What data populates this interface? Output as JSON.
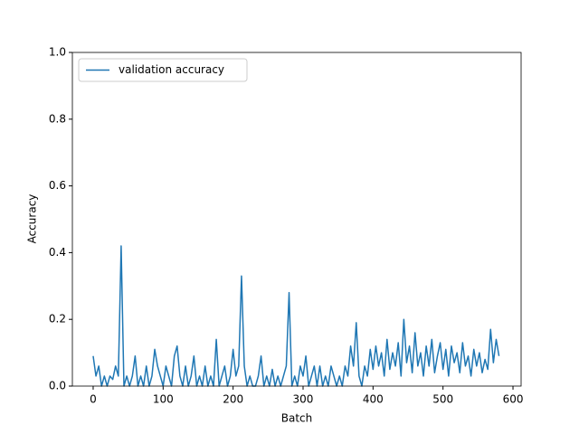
{
  "chart_data": {
    "type": "line",
    "x_label": "Batch",
    "y_label": "Accuracy",
    "x": [
      0,
      4,
      8,
      12,
      16,
      20,
      24,
      28,
      32,
      36,
      40,
      44,
      48,
      52,
      56,
      60,
      64,
      68,
      72,
      76,
      80,
      84,
      88,
      92,
      96,
      100,
      104,
      108,
      112,
      116,
      120,
      124,
      128,
      132,
      136,
      140,
      144,
      148,
      152,
      156,
      160,
      164,
      168,
      172,
      176,
      180,
      184,
      188,
      192,
      196,
      200,
      204,
      208,
      212,
      216,
      220,
      224,
      228,
      232,
      236,
      240,
      244,
      248,
      252,
      256,
      260,
      264,
      268,
      272,
      276,
      280,
      284,
      288,
      292,
      296,
      300,
      304,
      308,
      312,
      316,
      320,
      324,
      328,
      332,
      336,
      340,
      344,
      348,
      352,
      356,
      360,
      364,
      368,
      372,
      376,
      380,
      384,
      388,
      392,
      396,
      400,
      404,
      408,
      412,
      416,
      420,
      424,
      428,
      432,
      436,
      440,
      444,
      448,
      452,
      456,
      460,
      464,
      468,
      472,
      476,
      480,
      484,
      488,
      492,
      496,
      500,
      504,
      508,
      512,
      516,
      520,
      524,
      528,
      532,
      536,
      540,
      544,
      548,
      552,
      556,
      560,
      564,
      568,
      572,
      576,
      580
    ],
    "series": [
      {
        "name": "validation accuracy",
        "color": "#1f77b4",
        "values": [
          0.09,
          0.03,
          0.06,
          0.0,
          0.03,
          0.0,
          0.03,
          0.02,
          0.06,
          0.03,
          0.42,
          0.0,
          0.03,
          0.0,
          0.03,
          0.09,
          0.0,
          0.03,
          0.0,
          0.06,
          0.0,
          0.03,
          0.11,
          0.06,
          0.03,
          0.0,
          0.06,
          0.03,
          0.0,
          0.09,
          0.12,
          0.03,
          0.0,
          0.06,
          0.0,
          0.03,
          0.09,
          0.0,
          0.03,
          0.0,
          0.06,
          0.0,
          0.03,
          0.0,
          0.14,
          0.0,
          0.03,
          0.06,
          0.0,
          0.03,
          0.11,
          0.03,
          0.06,
          0.33,
          0.06,
          0.0,
          0.03,
          0.0,
          0.0,
          0.03,
          0.09,
          0.0,
          0.03,
          0.0,
          0.05,
          0.0,
          0.03,
          0.0,
          0.03,
          0.06,
          0.28,
          0.0,
          0.03,
          0.0,
          0.06,
          0.03,
          0.09,
          0.0,
          0.03,
          0.06,
          0.0,
          0.06,
          0.0,
          0.03,
          0.0,
          0.06,
          0.03,
          0.0,
          0.03,
          0.0,
          0.06,
          0.03,
          0.12,
          0.06,
          0.19,
          0.03,
          0.0,
          0.06,
          0.03,
          0.11,
          0.05,
          0.12,
          0.06,
          0.1,
          0.03,
          0.14,
          0.05,
          0.1,
          0.06,
          0.13,
          0.03,
          0.2,
          0.07,
          0.12,
          0.04,
          0.16,
          0.06,
          0.1,
          0.03,
          0.12,
          0.06,
          0.14,
          0.04,
          0.09,
          0.13,
          0.05,
          0.11,
          0.03,
          0.12,
          0.07,
          0.1,
          0.04,
          0.13,
          0.06,
          0.09,
          0.03,
          0.11,
          0.06,
          0.1,
          0.04,
          0.08,
          0.05,
          0.17,
          0.07,
          0.14,
          0.09
        ]
      }
    ],
    "xlim": [
      -29.7,
      611.6
    ],
    "ylim": [
      0,
      1
    ],
    "xticks": [
      0,
      100,
      200,
      300,
      400,
      500,
      600
    ],
    "yticks": [
      {
        "value": 0,
        "label": "0.0"
      },
      {
        "value": 0.2,
        "label": "0.2"
      },
      {
        "value": 0.4,
        "label": "0.4"
      },
      {
        "value": 0.6,
        "label": "0.6"
      },
      {
        "value": 0.8,
        "label": "0.8"
      },
      {
        "value": 1,
        "label": "1.0"
      }
    ],
    "legend": "upper left"
  }
}
